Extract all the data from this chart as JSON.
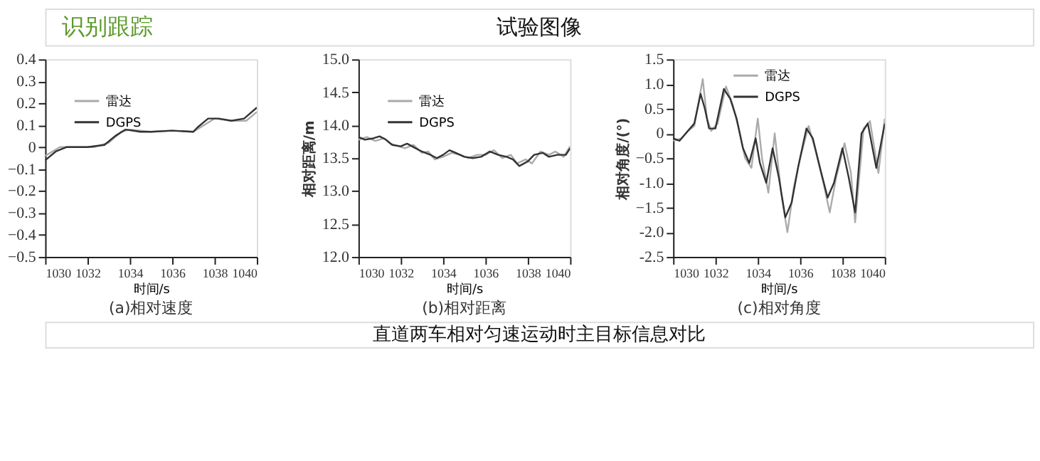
{
  "chart_data": [
    {
      "type": "line",
      "title": "(a)相对速度",
      "xlabel": "时间/s",
      "xlim": [
        1030,
        1040
      ],
      "xticks": [
        1030,
        1032,
        1034,
        1036,
        1038,
        1040
      ],
      "ylim": [
        -0.5,
        0.4
      ],
      "yticks": [
        -0.5,
        -0.4,
        -0.3,
        -0.2,
        -0.1,
        0,
        0.1,
        0.2,
        0.3,
        0.4
      ],
      "grid": false,
      "legend": "top left",
      "line_style": "solid",
      "marker": "none",
      "series": [
        {
          "name": "雷达",
          "color": "#aaaaaa",
          "x": [
            1030,
            1030.7,
            1031.5,
            1032.3,
            1033,
            1033.6,
            1034,
            1035,
            1036,
            1037,
            1037.5,
            1038,
            1038.8,
            1039.5,
            1040
          ],
          "values": [
            -0.04,
            0,
            0,
            0,
            0.02,
            0.07,
            0.08,
            0.07,
            0.075,
            0.07,
            0.1,
            0.13,
            0.12,
            0.12,
            0.16
          ]
        },
        {
          "name": "DGPS",
          "color": "#333333",
          "x": [
            1030,
            1030.5,
            1031,
            1032,
            1032.8,
            1033.3,
            1033.8,
            1034.5,
            1035,
            1036,
            1037,
            1037.2,
            1037.7,
            1038.2,
            1038.8,
            1039.4,
            1040
          ],
          "values": [
            -0.06,
            -0.02,
            0,
            0,
            0.01,
            0.05,
            0.08,
            0.07,
            0.07,
            0.075,
            0.07,
            0.09,
            0.13,
            0.13,
            0.12,
            0.13,
            0.18
          ]
        }
      ]
    },
    {
      "type": "line",
      "title": "(b)相对距离",
      "xlabel": "时间/s",
      "ylabel": "相对距离/m",
      "xlim": [
        1030,
        1040
      ],
      "xticks": [
        1030,
        1032,
        1034,
        1036,
        1038,
        1040
      ],
      "ylim": [
        12,
        15
      ],
      "yticks": [
        {
          "value": 12,
          "label": "12.0"
        },
        12.5,
        {
          "value": 13,
          "label": "13.0"
        },
        13.5,
        {
          "value": 14,
          "label": "14.0"
        },
        14.5,
        {
          "value": 15,
          "label": "15.0"
        }
      ],
      "grid": false,
      "legend": "top left",
      "line_style": "solid",
      "marker": "none",
      "annotations": [
        "试验图像",
        "识别跟踪",
        "直道两车相对匀速运动时主目标信息对比"
      ],
      "series": [
        {
          "name": "雷达",
          "color": "#aaaaaa",
          "x": [
            1030,
            1030.4,
            1030.8,
            1031.2,
            1031.5,
            1031.9,
            1032.2,
            1032.6,
            1033,
            1033.3,
            1033.6,
            1034,
            1034.4,
            1034.8,
            1035.2,
            1035.6,
            1036,
            1036.4,
            1036.8,
            1037.2,
            1037.5,
            1037.9,
            1038.2,
            1038.6,
            1039,
            1039.3,
            1039.7,
            1040
          ],
          "values": [
            13.78,
            13.82,
            13.76,
            13.8,
            13.72,
            13.68,
            13.65,
            13.7,
            13.58,
            13.6,
            13.48,
            13.52,
            13.58,
            13.55,
            13.5,
            13.55,
            13.55,
            13.62,
            13.5,
            13.55,
            13.42,
            13.48,
            13.42,
            13.6,
            13.55,
            13.6,
            13.52,
            13.68
          ]
        },
        {
          "name": "DGPS",
          "color": "#333333",
          "x": [
            1030,
            1030.3,
            1030.7,
            1031,
            1031.3,
            1031.6,
            1032,
            1032.3,
            1032.7,
            1033,
            1033.4,
            1033.7,
            1034,
            1034.3,
            1034.6,
            1035,
            1035.4,
            1035.8,
            1036.2,
            1036.6,
            1037,
            1037.3,
            1037.6,
            1038,
            1038.3,
            1038.7,
            1039,
            1039.4,
            1039.8,
            1040
          ],
          "values": [
            13.82,
            13.78,
            13.8,
            13.83,
            13.78,
            13.7,
            13.68,
            13.72,
            13.65,
            13.6,
            13.55,
            13.5,
            13.55,
            13.62,
            13.58,
            13.52,
            13.5,
            13.52,
            13.6,
            13.55,
            13.52,
            13.48,
            13.38,
            13.45,
            13.55,
            13.58,
            13.52,
            13.55,
            13.55,
            13.65
          ]
        }
      ]
    },
    {
      "type": "line",
      "title": "(c)相对角度",
      "xlabel": "时间/s",
      "ylabel": "相对角度/(°)",
      "xlim": [
        1030,
        1040
      ],
      "xticks": [
        1030,
        1032,
        1034,
        1036,
        1038,
        1040
      ],
      "ylim": [
        -2.5,
        1.5
      ],
      "yticks": [
        {
          "value": -2.5,
          "label": "-2.5"
        },
        {
          "value": -2,
          "label": "-2.0"
        },
        -1.5,
        {
          "value": -1,
          "label": "-1.0"
        },
        -0.5,
        0,
        0.5,
        {
          "value": 1,
          "label": "1.0"
        },
        1.5
      ],
      "grid": false,
      "legend": "top",
      "line_style": "solid",
      "marker": "none",
      "series": [
        {
          "name": "雷达",
          "color": "#aaaaaa",
          "x": [
            1030,
            1030.4,
            1030.7,
            1031,
            1031.4,
            1031.6,
            1031.8,
            1032.1,
            1032.5,
            1032.8,
            1033.1,
            1033.4,
            1033.7,
            1034,
            1034.2,
            1034.5,
            1034.8,
            1035.1,
            1035.4,
            1035.7,
            1036,
            1036.4,
            1036.7,
            1037.1,
            1037.4,
            1037.7,
            1038.1,
            1038.4,
            1038.6,
            1039,
            1039.3,
            1039.7,
            1040
          ],
          "values": [
            -0.15,
            -0.1,
            0.05,
            0.15,
            1.1,
            0.3,
            0.05,
            0.2,
            0.95,
            0.6,
            0.1,
            -0.5,
            -0.7,
            0.3,
            -0.5,
            -1.2,
            0,
            -1.2,
            -2.0,
            -1.1,
            -0.5,
            0.15,
            -0.3,
            -1.0,
            -1.6,
            -0.9,
            -0.2,
            -0.8,
            -1.8,
            0.1,
            0.25,
            -0.8,
            0.3
          ]
        },
        {
          "name": "DGPS",
          "color": "#333333",
          "x": [
            1030,
            1030.3,
            1030.6,
            1031,
            1031.3,
            1031.5,
            1031.7,
            1032,
            1032.4,
            1032.7,
            1033,
            1033.3,
            1033.6,
            1033.9,
            1034.1,
            1034.4,
            1034.7,
            1035,
            1035.3,
            1035.6,
            1035.9,
            1036.3,
            1036.6,
            1037,
            1037.3,
            1037.6,
            1038,
            1038.3,
            1038.6,
            1038.9,
            1039.2,
            1039.6,
            1040
          ],
          "values": [
            -0.1,
            -0.15,
            0,
            0.2,
            0.8,
            0.5,
            0.1,
            0.1,
            0.9,
            0.7,
            0.3,
            -0.3,
            -0.6,
            -0.1,
            -0.6,
            -1.0,
            -0.3,
            -0.9,
            -1.7,
            -1.4,
            -0.7,
            0.1,
            -0.1,
            -0.8,
            -1.3,
            -1.0,
            -0.3,
            -0.9,
            -1.6,
            0,
            0.2,
            -0.7,
            0.2
          ]
        }
      ]
    }
  ]
}
